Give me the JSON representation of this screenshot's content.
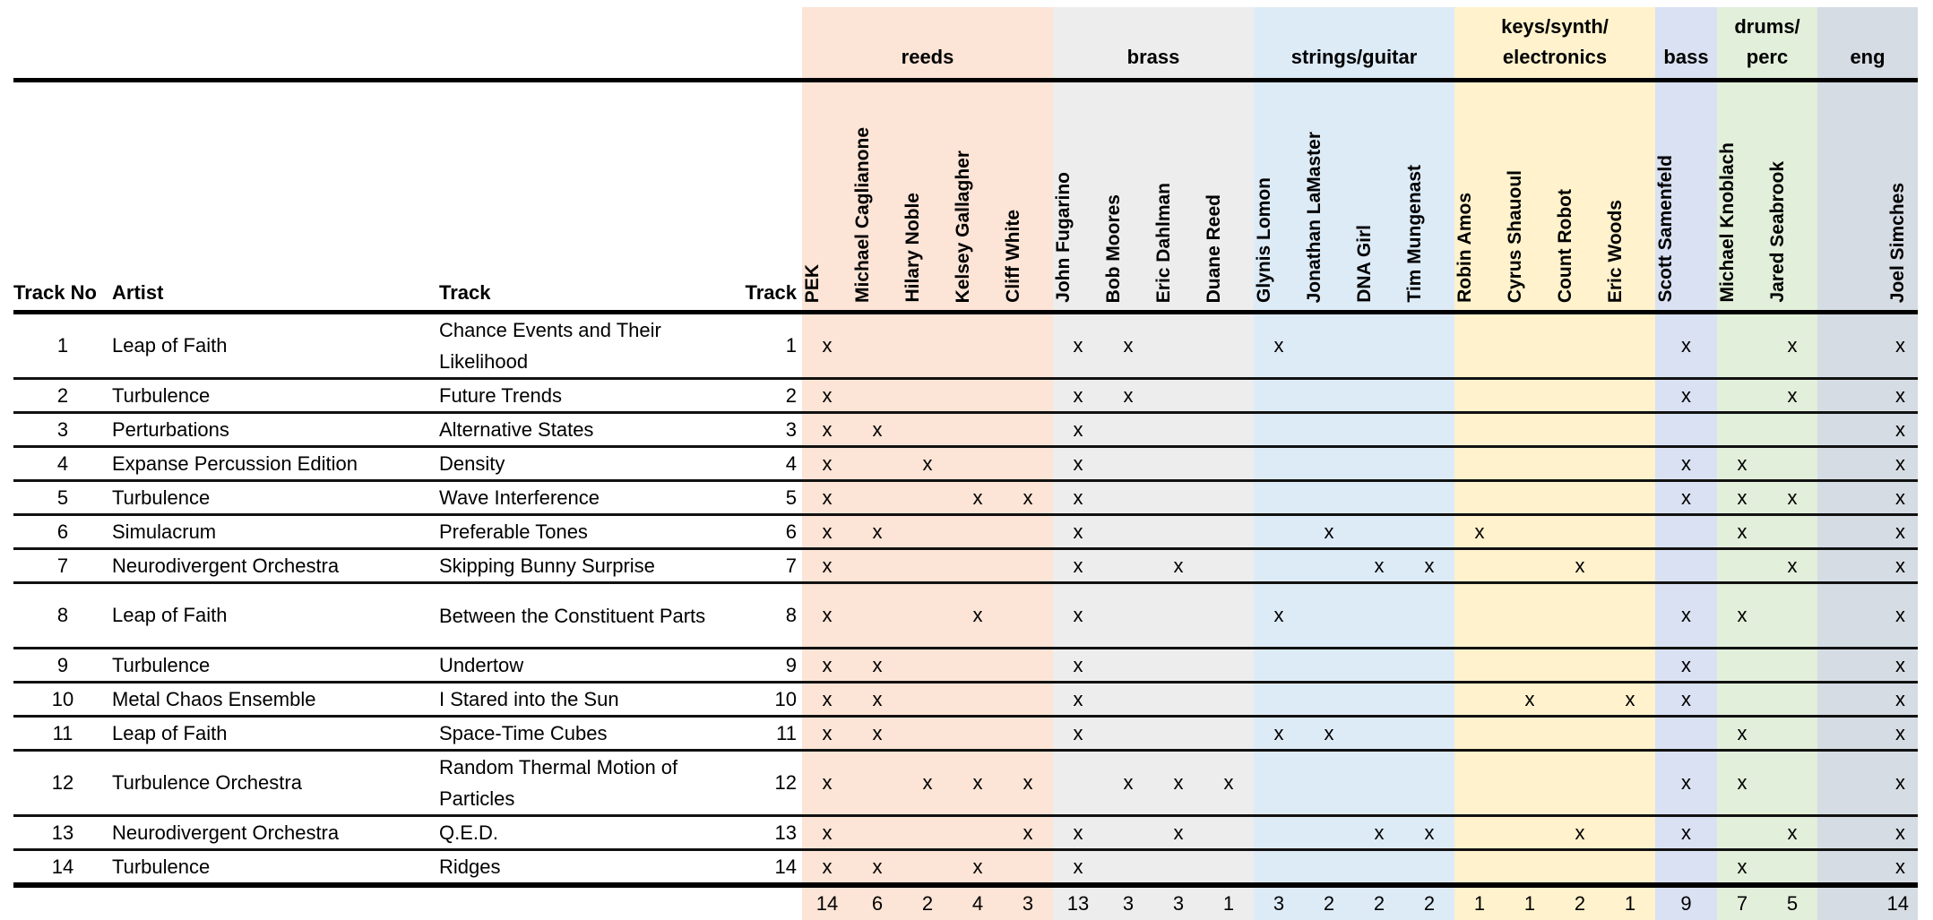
{
  "headers": {
    "track_no": "Track No",
    "artist": "Artist",
    "track": "Track",
    "track_num": "Track"
  },
  "mark_label": "x",
  "groups": [
    {
      "label": "reeds",
      "key": "reeds",
      "color": "#fce4d6",
      "members": [
        "PEK",
        "Michael Caglianone",
        "Hilary Noble",
        "Kelsey Gallagher",
        "Cliff White"
      ]
    },
    {
      "label": "brass",
      "key": "brass",
      "color": "#ededed",
      "members": [
        "John Fugarino",
        "Bob Moores",
        "Eric Dahlman",
        "Duane Reed"
      ]
    },
    {
      "label": "strings/guitar",
      "key": "strings",
      "color": "#ddebf7",
      "members": [
        "Glynis Lomon",
        "Jonathan LaMaster",
        "DNA Girl",
        "Tim Mungenast"
      ]
    },
    {
      "label": "keys/synth/ electronics",
      "key": "keys",
      "color": "#fff2cc",
      "members": [
        "Robin Amos",
        "Cyrus Shauoul",
        "Count Robot",
        "Eric Woods"
      ]
    },
    {
      "label": "bass",
      "key": "bass",
      "color": "#d9e1f2",
      "members": [
        "Scott Samenfeld"
      ]
    },
    {
      "label": "drums/ perc",
      "key": "drums",
      "color": "#e2efda",
      "members": [
        "Michael Knoblach",
        "Jared Seabrook"
      ]
    },
    {
      "label": "eng",
      "key": "eng",
      "color": "#d6dce4",
      "members": [
        "Joel Simches"
      ]
    }
  ],
  "rows": [
    {
      "no": "1",
      "artist": "Leap of Faith",
      "track": "Chance Events and Their Likelihood",
      "num": "1",
      "marks": [
        0,
        5,
        6,
        9,
        17,
        19,
        20
      ]
    },
    {
      "no": "2",
      "artist": "Turbulence",
      "track": "Future Trends",
      "num": "2",
      "marks": [
        0,
        5,
        6,
        17,
        19,
        20
      ]
    },
    {
      "no": "3",
      "artist": "Perturbations",
      "track": "Alternative States",
      "num": "3",
      "marks": [
        0,
        1,
        5,
        20
      ]
    },
    {
      "no": "4",
      "artist": "Expanse Percussion Edition",
      "track": "Density",
      "num": "4",
      "marks": [
        0,
        2,
        5,
        17,
        18,
        20
      ]
    },
    {
      "no": "5",
      "artist": "Turbulence",
      "track": "Wave Interference",
      "num": "5",
      "marks": [
        0,
        3,
        4,
        5,
        17,
        18,
        19,
        20
      ]
    },
    {
      "no": "6",
      "artist": "Simulacrum",
      "track": "Preferable Tones",
      "num": "6",
      "marks": [
        0,
        1,
        5,
        10,
        13,
        18,
        20
      ]
    },
    {
      "no": "7",
      "artist": "Neurodivergent Orchestra",
      "track": "Skipping Bunny Surprise",
      "num": "7",
      "marks": [
        0,
        5,
        7,
        11,
        12,
        15,
        19,
        20
      ]
    },
    {
      "no": "8",
      "artist": "Leap of Faith",
      "track": "Between the Constituent Parts",
      "num": "8",
      "marks": [
        0,
        3,
        5,
        9,
        17,
        18,
        20
      ]
    },
    {
      "no": "9",
      "artist": "Turbulence",
      "track": "Undertow",
      "num": "9",
      "marks": [
        0,
        1,
        5,
        17,
        20
      ]
    },
    {
      "no": "10",
      "artist": "Metal Chaos Ensemble",
      "track": "I Stared into the Sun",
      "num": "10",
      "marks": [
        0,
        1,
        5,
        14,
        16,
        17,
        20
      ]
    },
    {
      "no": "11",
      "artist": "Leap of Faith",
      "track": "Space-Time Cubes",
      "num": "11",
      "marks": [
        0,
        1,
        5,
        9,
        10,
        18,
        20
      ]
    },
    {
      "no": "12",
      "artist": "Turbulence Orchestra",
      "track": "Random Thermal Motion of Particles",
      "num": "12",
      "marks": [
        0,
        2,
        3,
        4,
        6,
        7,
        8,
        17,
        18,
        20
      ]
    },
    {
      "no": "13",
      "artist": "Neurodivergent Orchestra",
      "track": "Q.E.D.",
      "num": "13",
      "marks": [
        0,
        4,
        5,
        7,
        11,
        12,
        15,
        17,
        19,
        20
      ]
    },
    {
      "no": "14",
      "artist": "Turbulence",
      "track": "Ridges",
      "num": "14",
      "marks": [
        0,
        1,
        3,
        5,
        18,
        20
      ]
    }
  ],
  "totals": [
    "14",
    "6",
    "2",
    "4",
    "3",
    "13",
    "3",
    "3",
    "1",
    "3",
    "2",
    "2",
    "2",
    "1",
    "1",
    "2",
    "1",
    "9",
    "7",
    "5",
    "14"
  ]
}
